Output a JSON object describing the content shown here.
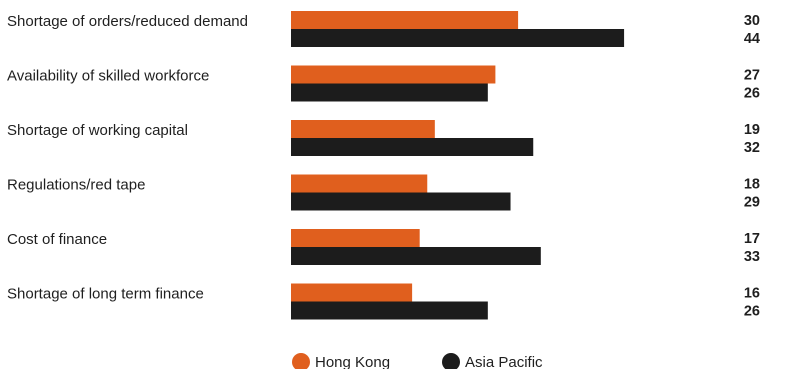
{
  "chart_data": {
    "type": "bar",
    "orientation": "horizontal",
    "categories": [
      "Shortage of orders/reduced demand",
      "Availability of skilled workforce",
      "Shortage of working capital",
      "Regulations/red tape",
      "Cost of finance",
      "Shortage of long term finance"
    ],
    "series": [
      {
        "name": "Hong Kong",
        "color": "#e05f1e",
        "values": [
          30,
          27,
          19,
          18,
          17,
          16
        ]
      },
      {
        "name": "Asia Pacific",
        "color": "#1c1c1c",
        "values": [
          44,
          26,
          32,
          29,
          33,
          26
        ]
      }
    ],
    "grid": false,
    "legend_position": "bottom-center"
  }
}
